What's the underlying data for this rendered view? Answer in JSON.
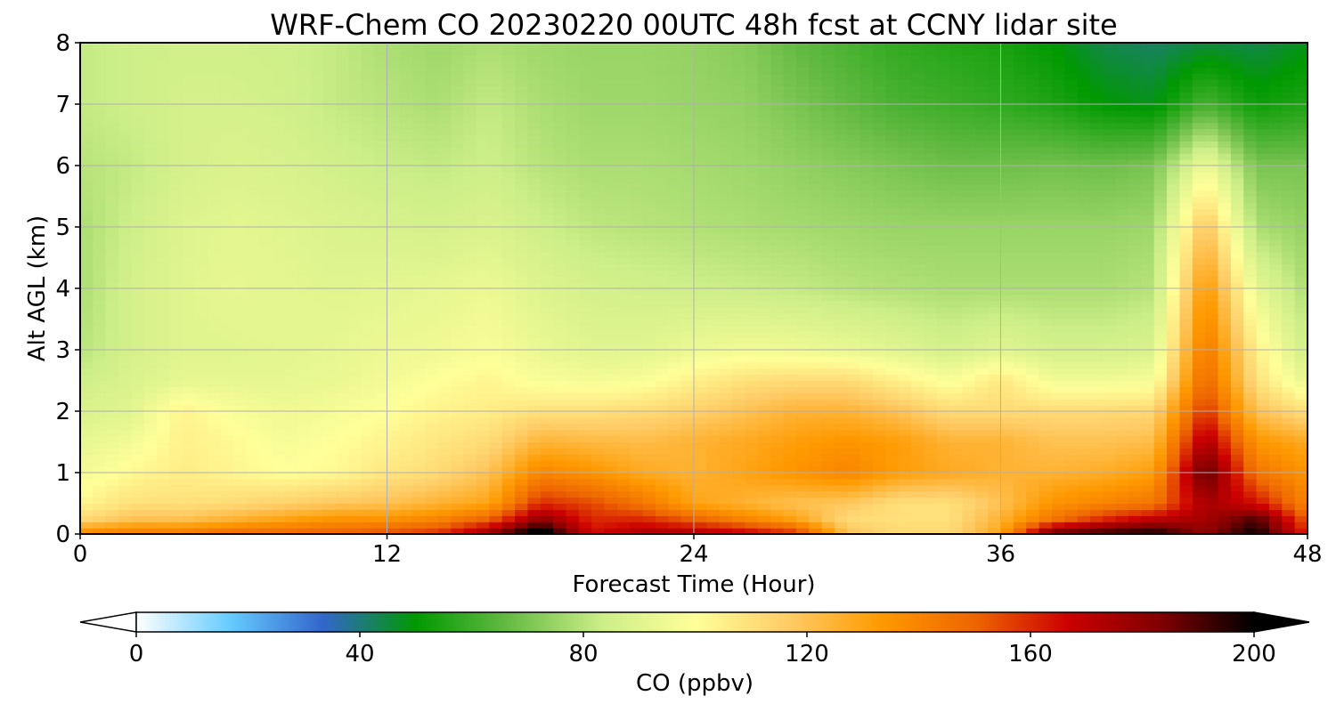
{
  "chart_data": {
    "type": "heatmap",
    "title": "WRF-Chem CO  20230220 00UTC 48h fcst at CCNY lidar site",
    "xlabel": "Forecast Time (Hour)",
    "ylabel": "Alt AGL (km)",
    "xlim": [
      0,
      48
    ],
    "ylim": [
      0,
      8
    ],
    "x_ticks": [
      0,
      12,
      24,
      36,
      48
    ],
    "y_ticks": [
      0,
      1,
      2,
      3,
      4,
      5,
      6,
      7,
      8
    ],
    "grid": true,
    "colorbar": {
      "label": "CO  (ppbv)",
      "min": 0,
      "max": 200,
      "ticks": [
        0,
        40,
        80,
        120,
        160,
        200
      ],
      "extend": "both",
      "colors": [
        "#ffffff",
        "#66ccff",
        "#3366cc",
        "#009900",
        "#66bb44",
        "#ccee88",
        "#ffff99",
        "#ffcc66",
        "#ff9900",
        "#ee6600",
        "#cc0000",
        "#800000",
        "#000000"
      ]
    },
    "x": [
      0,
      2,
      4,
      6,
      8,
      10,
      12,
      14,
      16,
      18,
      20,
      22,
      24,
      26,
      28,
      30,
      32,
      34,
      36,
      38,
      40,
      42,
      44,
      46,
      48
    ],
    "y": [
      0,
      0.25,
      0.5,
      1,
      1.5,
      2,
      2.5,
      3,
      4,
      5,
      6,
      7,
      8
    ],
    "z": [
      [
        140,
        145,
        145,
        150,
        150,
        152,
        155,
        160,
        180,
        210,
        165,
        175,
        175,
        170,
        160,
        120,
        112,
        112,
        130,
        190,
        195,
        200,
        180,
        200,
        160
      ],
      [
        112,
        120,
        120,
        125,
        130,
        135,
        135,
        140,
        150,
        180,
        160,
        160,
        150,
        140,
        130,
        112,
        110,
        110,
        125,
        145,
        160,
        170,
        175,
        190,
        150
      ],
      [
        103,
        110,
        110,
        112,
        115,
        118,
        120,
        125,
        130,
        160,
        155,
        145,
        130,
        125,
        120,
        118,
        110,
        110,
        120,
        135,
        140,
        145,
        175,
        165,
        140
      ],
      [
        96,
        102,
        106,
        103,
        100,
        102,
        108,
        112,
        120,
        140,
        135,
        128,
        125,
        130,
        135,
        140,
        132,
        128,
        125,
        125,
        127,
        132,
        190,
        145,
        135
      ],
      [
        92,
        96,
        105,
        102,
        97,
        100,
        104,
        108,
        112,
        125,
        123,
        122,
        125,
        128,
        132,
        135,
        132,
        125,
        125,
        120,
        120,
        122,
        175,
        135,
        128
      ],
      [
        88,
        90,
        104,
        98,
        95,
        97,
        100,
        104,
        106,
        110,
        110,
        112,
        115,
        120,
        125,
        125,
        120,
        112,
        112,
        112,
        112,
        113,
        160,
        120,
        110
      ],
      [
        84,
        88,
        92,
        92,
        92,
        93,
        96,
        100,
        103,
        98,
        97,
        98,
        105,
        110,
        112,
        112,
        105,
        98,
        108,
        96,
        96,
        97,
        150,
        110,
        92
      ],
      [
        80,
        86,
        90,
        90,
        91,
        92,
        94,
        95,
        98,
        93,
        90,
        90,
        94,
        96,
        95,
        93,
        90,
        86,
        90,
        86,
        86,
        88,
        145,
        105,
        84
      ],
      [
        78,
        86,
        90,
        92,
        91,
        90,
        91,
        92,
        94,
        89,
        86,
        85,
        84,
        83,
        82,
        80,
        79,
        78,
        78,
        78,
        78,
        80,
        135,
        92,
        78
      ],
      [
        78,
        84,
        89,
        91,
        90,
        88,
        87,
        86,
        88,
        84,
        81,
        80,
        79,
        78,
        77,
        76,
        75,
        75,
        75,
        75,
        75,
        76,
        120,
        78,
        74
      ],
      [
        80,
        82,
        86,
        88,
        87,
        85,
        83,
        82,
        84,
        80,
        78,
        78,
        77,
        76,
        74,
        72,
        70,
        68,
        68,
        69,
        68,
        70,
        95,
        70,
        70
      ],
      [
        82,
        84,
        86,
        86,
        85,
        82,
        80,
        78,
        82,
        78,
        76,
        76,
        75,
        74,
        70,
        66,
        62,
        60,
        58,
        55,
        50,
        48,
        62,
        52,
        55
      ],
      [
        82,
        84,
        85,
        85,
        84,
        82,
        78,
        76,
        78,
        76,
        75,
        75,
        74,
        72,
        66,
        62,
        58,
        56,
        54,
        50,
        44,
        42,
        45,
        44,
        48
      ]
    ]
  }
}
